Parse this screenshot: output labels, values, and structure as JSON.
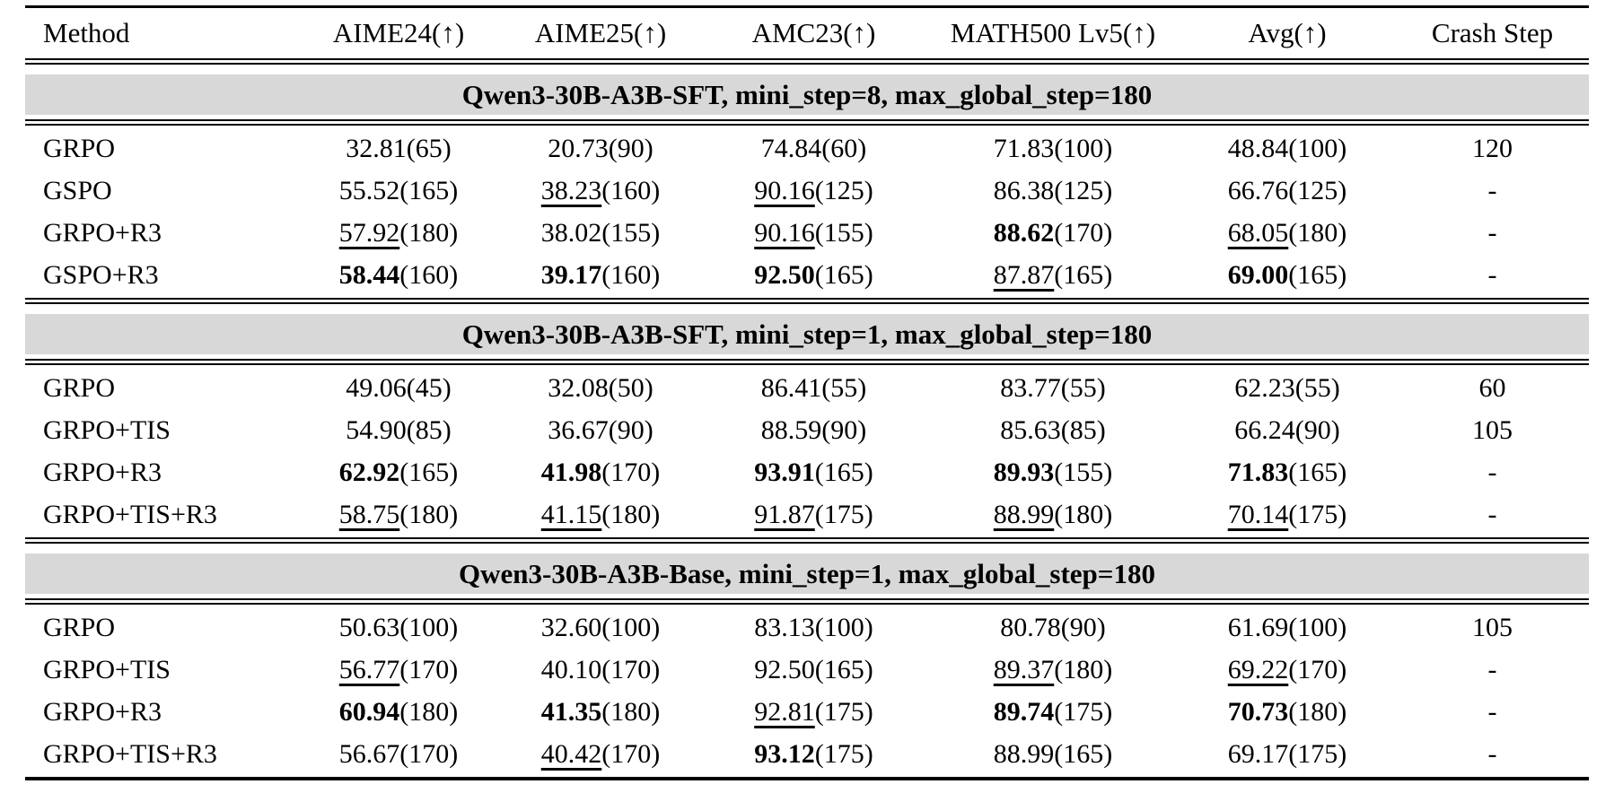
{
  "colors": {
    "section_band_background": "#d8d8d8",
    "text": "#000000",
    "page_background": "#ffffff"
  },
  "table": {
    "columns": [
      "Method",
      "AIME24(↑)",
      "AIME25(↑)",
      "AMC23(↑)",
      "MATH500 Lv5(↑)",
      "Avg(↑)",
      "Crash Step"
    ],
    "sections": [
      {
        "title": "Qwen3-30B-A3B-SFT, mini_step=8, max_global_step=180",
        "rows": [
          {
            "method": "GRPO",
            "scores": [
              {
                "value": "32.81",
                "step": "(65)",
                "style": "plain"
              },
              {
                "value": "20.73",
                "step": "(90)",
                "style": "plain"
              },
              {
                "value": "74.84",
                "step": "(60)",
                "style": "plain"
              },
              {
                "value": "71.83",
                "step": "(100)",
                "style": "plain"
              },
              {
                "value": "48.84",
                "step": "(100)",
                "style": "plain"
              }
            ],
            "crash_step": "120"
          },
          {
            "method": "GSPO",
            "scores": [
              {
                "value": "55.52",
                "step": "(165)",
                "style": "plain"
              },
              {
                "value": "38.23",
                "step": "(160)",
                "style": "underline"
              },
              {
                "value": "90.16",
                "step": "(125)",
                "style": "underline"
              },
              {
                "value": "86.38",
                "step": "(125)",
                "style": "plain"
              },
              {
                "value": "66.76",
                "step": "(125)",
                "style": "plain"
              }
            ],
            "crash_step": "-"
          },
          {
            "method": "GRPO+R3",
            "scores": [
              {
                "value": "57.92",
                "step": "(180)",
                "style": "underline"
              },
              {
                "value": "38.02",
                "step": "(155)",
                "style": "plain"
              },
              {
                "value": "90.16",
                "step": "(155)",
                "style": "underline"
              },
              {
                "value": "88.62",
                "step": "(170)",
                "style": "bold"
              },
              {
                "value": "68.05",
                "step": "(180)",
                "style": "underline"
              }
            ],
            "crash_step": "-"
          },
          {
            "method": "GSPO+R3",
            "scores": [
              {
                "value": "58.44",
                "step": "(160)",
                "style": "bold"
              },
              {
                "value": "39.17",
                "step": "(160)",
                "style": "bold"
              },
              {
                "value": "92.50",
                "step": "(165)",
                "style": "bold"
              },
              {
                "value": "87.87",
                "step": "(165)",
                "style": "underline"
              },
              {
                "value": "69.00",
                "step": "(165)",
                "style": "bold"
              }
            ],
            "crash_step": "-"
          }
        ]
      },
      {
        "title": "Qwen3-30B-A3B-SFT, mini_step=1, max_global_step=180",
        "rows": [
          {
            "method": "GRPO",
            "scores": [
              {
                "value": "49.06",
                "step": "(45)",
                "style": "plain"
              },
              {
                "value": "32.08",
                "step": "(50)",
                "style": "plain"
              },
              {
                "value": "86.41",
                "step": "(55)",
                "style": "plain"
              },
              {
                "value": "83.77",
                "step": "(55)",
                "style": "plain"
              },
              {
                "value": "62.23",
                "step": "(55)",
                "style": "plain"
              }
            ],
            "crash_step": "60"
          },
          {
            "method": "GRPO+TIS",
            "scores": [
              {
                "value": "54.90",
                "step": "(85)",
                "style": "plain"
              },
              {
                "value": "36.67",
                "step": "(90)",
                "style": "plain"
              },
              {
                "value": "88.59",
                "step": "(90)",
                "style": "plain"
              },
              {
                "value": "85.63",
                "step": "(85)",
                "style": "plain"
              },
              {
                "value": "66.24",
                "step": "(90)",
                "style": "plain"
              }
            ],
            "crash_step": "105"
          },
          {
            "method": "GRPO+R3",
            "scores": [
              {
                "value": "62.92",
                "step": "(165)",
                "style": "bold"
              },
              {
                "value": "41.98",
                "step": "(170)",
                "style": "bold"
              },
              {
                "value": "93.91",
                "step": "(165)",
                "style": "bold"
              },
              {
                "value": "89.93",
                "step": "(155)",
                "style": "bold"
              },
              {
                "value": "71.83",
                "step": "(165)",
                "style": "bold"
              }
            ],
            "crash_step": "-"
          },
          {
            "method": "GRPO+TIS+R3",
            "scores": [
              {
                "value": "58.75",
                "step": "(180)",
                "style": "underline"
              },
              {
                "value": "41.15",
                "step": "(180)",
                "style": "underline"
              },
              {
                "value": "91.87",
                "step": "(175)",
                "style": "underline"
              },
              {
                "value": "88.99",
                "step": "(180)",
                "style": "underline"
              },
              {
                "value": "70.14",
                "step": "(175)",
                "style": "underline"
              }
            ],
            "crash_step": "-"
          }
        ]
      },
      {
        "title": "Qwen3-30B-A3B-Base, mini_step=1, max_global_step=180",
        "rows": [
          {
            "method": "GRPO",
            "scores": [
              {
                "value": "50.63",
                "step": "(100)",
                "style": "plain"
              },
              {
                "value": "32.60",
                "step": "(100)",
                "style": "plain"
              },
              {
                "value": "83.13",
                "step": "(100)",
                "style": "plain"
              },
              {
                "value": "80.78",
                "step": "(90)",
                "style": "plain"
              },
              {
                "value": "61.69",
                "step": "(100)",
                "style": "plain"
              }
            ],
            "crash_step": "105"
          },
          {
            "method": "GRPO+TIS",
            "scores": [
              {
                "value": "56.77",
                "step": "(170)",
                "style": "underline"
              },
              {
                "value": "40.10",
                "step": "(170)",
                "style": "plain"
              },
              {
                "value": "92.50",
                "step": "(165)",
                "style": "plain"
              },
              {
                "value": "89.37",
                "step": "(180)",
                "style": "underline"
              },
              {
                "value": "69.22",
                "step": "(170)",
                "style": "underline"
              }
            ],
            "crash_step": "-"
          },
          {
            "method": "GRPO+R3",
            "scores": [
              {
                "value": "60.94",
                "step": "(180)",
                "style": "bold"
              },
              {
                "value": "41.35",
                "step": "(180)",
                "style": "bold"
              },
              {
                "value": "92.81",
                "step": "(175)",
                "style": "underline"
              },
              {
                "value": "89.74",
                "step": "(175)",
                "style": "bold"
              },
              {
                "value": "70.73",
                "step": "(180)",
                "style": "bold"
              }
            ],
            "crash_step": "-"
          },
          {
            "method": "GRPO+TIS+R3",
            "scores": [
              {
                "value": "56.67",
                "step": "(170)",
                "style": "plain"
              },
              {
                "value": "40.42",
                "step": "(170)",
                "style": "underline"
              },
              {
                "value": "93.12",
                "step": "(175)",
                "style": "bold"
              },
              {
                "value": "88.99",
                "step": "(165)",
                "style": "plain"
              },
              {
                "value": "69.17",
                "step": "(175)",
                "style": "plain"
              }
            ],
            "crash_step": "-"
          }
        ]
      }
    ]
  }
}
